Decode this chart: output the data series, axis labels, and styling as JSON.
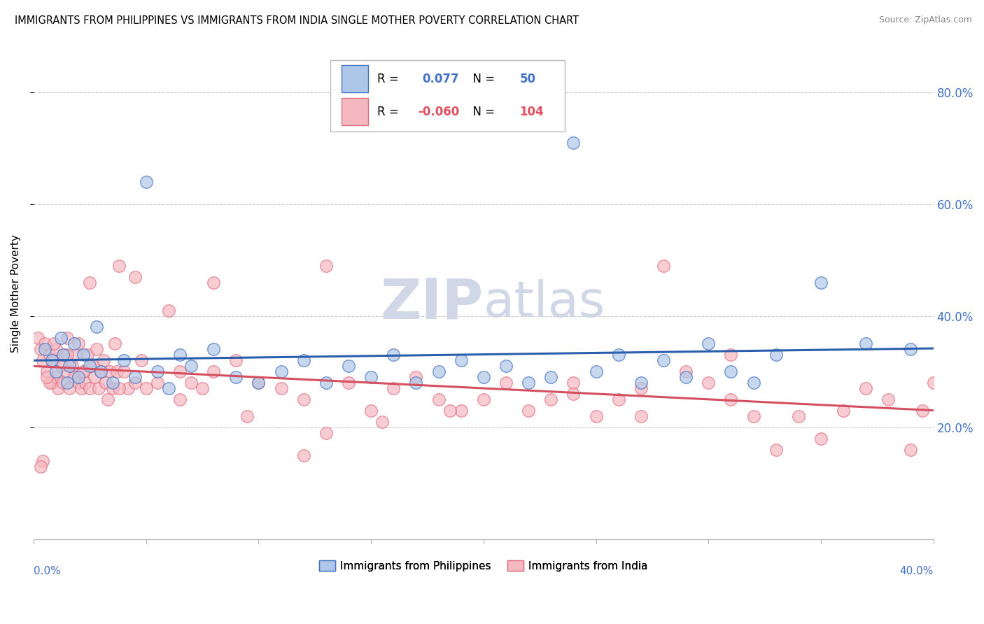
{
  "title": "IMMIGRANTS FROM PHILIPPINES VS IMMIGRANTS FROM INDIA SINGLE MOTHER POVERTY CORRELATION CHART",
  "source": "Source: ZipAtlas.com",
  "ylabel": "Single Mother Poverty",
  "yticks": [
    0.2,
    0.4,
    0.6,
    0.8
  ],
  "ytick_labels": [
    "20.0%",
    "40.0%",
    "60.0%",
    "80.0%"
  ],
  "xlim": [
    0.0,
    0.4
  ],
  "ylim": [
    0.0,
    0.88
  ],
  "philippines_R": 0.077,
  "philippines_N": 50,
  "india_R": -0.06,
  "india_N": 104,
  "philippines_color": "#aec6e8",
  "india_color": "#f4b8c1",
  "philippines_edge_color": "#4472c4",
  "india_edge_color": "#e07080",
  "philippines_line_color": "#2b5fad",
  "india_line_color": "#d45060",
  "watermark_color": "#d0d8e8",
  "philippines_scatter_x": [
    0.005,
    0.008,
    0.01,
    0.012,
    0.013,
    0.015,
    0.016,
    0.018,
    0.02,
    0.022,
    0.025,
    0.028,
    0.03,
    0.035,
    0.04,
    0.045,
    0.05,
    0.055,
    0.06,
    0.065,
    0.07,
    0.08,
    0.09,
    0.1,
    0.11,
    0.12,
    0.13,
    0.14,
    0.15,
    0.16,
    0.17,
    0.18,
    0.19,
    0.2,
    0.21,
    0.22,
    0.23,
    0.24,
    0.25,
    0.26,
    0.27,
    0.28,
    0.29,
    0.3,
    0.31,
    0.32,
    0.33,
    0.35,
    0.37,
    0.39
  ],
  "philippines_scatter_y": [
    0.34,
    0.32,
    0.3,
    0.36,
    0.33,
    0.28,
    0.31,
    0.35,
    0.29,
    0.33,
    0.31,
    0.38,
    0.3,
    0.28,
    0.32,
    0.29,
    0.64,
    0.3,
    0.27,
    0.33,
    0.31,
    0.34,
    0.29,
    0.28,
    0.3,
    0.32,
    0.28,
    0.31,
    0.29,
    0.33,
    0.28,
    0.3,
    0.32,
    0.29,
    0.31,
    0.28,
    0.29,
    0.71,
    0.3,
    0.33,
    0.28,
    0.32,
    0.29,
    0.35,
    0.3,
    0.28,
    0.33,
    0.46,
    0.35,
    0.34
  ],
  "india_scatter_x": [
    0.002,
    0.003,
    0.004,
    0.005,
    0.006,
    0.007,
    0.008,
    0.009,
    0.01,
    0.01,
    0.011,
    0.012,
    0.013,
    0.014,
    0.015,
    0.015,
    0.016,
    0.017,
    0.018,
    0.019,
    0.02,
    0.02,
    0.021,
    0.022,
    0.023,
    0.024,
    0.025,
    0.026,
    0.027,
    0.028,
    0.029,
    0.03,
    0.031,
    0.032,
    0.033,
    0.034,
    0.035,
    0.036,
    0.037,
    0.038,
    0.04,
    0.042,
    0.045,
    0.048,
    0.05,
    0.055,
    0.06,
    0.065,
    0.07,
    0.075,
    0.08,
    0.09,
    0.1,
    0.11,
    0.12,
    0.13,
    0.14,
    0.15,
    0.16,
    0.17,
    0.18,
    0.19,
    0.2,
    0.21,
    0.22,
    0.23,
    0.24,
    0.25,
    0.26,
    0.27,
    0.28,
    0.29,
    0.3,
    0.31,
    0.32,
    0.33,
    0.34,
    0.35,
    0.36,
    0.37,
    0.38,
    0.39,
    0.395,
    0.4,
    0.31,
    0.27,
    0.24,
    0.185,
    0.155,
    0.13,
    0.095,
    0.065,
    0.038,
    0.022,
    0.015,
    0.009,
    0.007,
    0.006,
    0.004,
    0.003,
    0.025,
    0.045,
    0.08,
    0.12
  ],
  "india_scatter_y": [
    0.36,
    0.34,
    0.32,
    0.35,
    0.3,
    0.33,
    0.28,
    0.32,
    0.29,
    0.34,
    0.27,
    0.31,
    0.28,
    0.33,
    0.3,
    0.36,
    0.27,
    0.31,
    0.29,
    0.33,
    0.28,
    0.35,
    0.27,
    0.3,
    0.28,
    0.33,
    0.27,
    0.31,
    0.29,
    0.34,
    0.27,
    0.3,
    0.32,
    0.28,
    0.25,
    0.3,
    0.27,
    0.35,
    0.3,
    0.49,
    0.3,
    0.27,
    0.28,
    0.32,
    0.27,
    0.28,
    0.41,
    0.3,
    0.28,
    0.27,
    0.3,
    0.32,
    0.28,
    0.27,
    0.25,
    0.49,
    0.28,
    0.23,
    0.27,
    0.29,
    0.25,
    0.23,
    0.25,
    0.28,
    0.23,
    0.25,
    0.28,
    0.22,
    0.25,
    0.22,
    0.49,
    0.3,
    0.28,
    0.25,
    0.22,
    0.16,
    0.22,
    0.18,
    0.23,
    0.27,
    0.25,
    0.16,
    0.23,
    0.28,
    0.33,
    0.27,
    0.26,
    0.23,
    0.21,
    0.19,
    0.22,
    0.25,
    0.27,
    0.3,
    0.33,
    0.35,
    0.28,
    0.29,
    0.14,
    0.13,
    0.46,
    0.47,
    0.46,
    0.15
  ]
}
